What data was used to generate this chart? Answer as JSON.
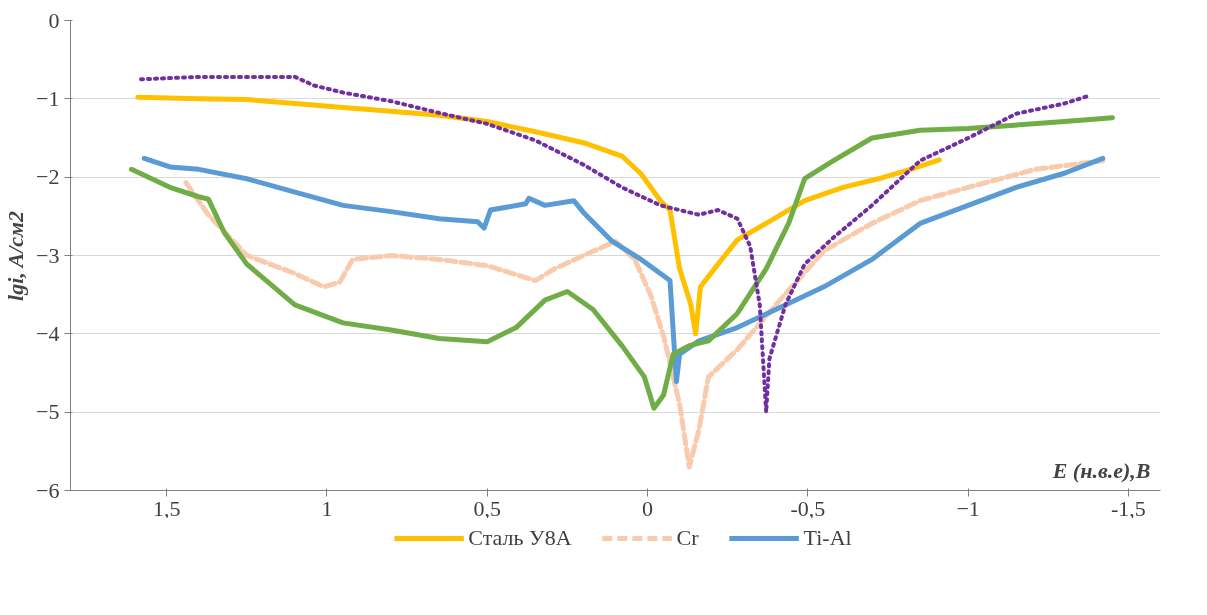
{
  "chart_data": {
    "type": "line",
    "xlabel": "E (н.в.е),B",
    "ylabel": "lgi, A/см2",
    "xlim": [
      1.8,
      -1.6
    ],
    "ylim": [
      -6,
      0
    ],
    "xticks": [
      {
        "value": 1.5,
        "label": "1,5"
      },
      1,
      {
        "value": 0.5,
        "label": "0,5"
      },
      0,
      {
        "value": -0.5,
        "label": "-0,5"
      },
      -1,
      {
        "value": -1.5,
        "label": "-1,5"
      }
    ],
    "yticks": [
      0,
      -1,
      -2,
      -3,
      -4,
      -5,
      -6
    ],
    "grid": "y",
    "legend": "bottom",
    "marker": "none",
    "series": [
      {
        "name": "Сталь У8А",
        "color": "#ffc000",
        "line_style": "solid",
        "x": [
          1.59,
          1.4,
          1.25,
          1.1,
          0.95,
          0.8,
          0.65,
          0.5,
          0.35,
          0.2,
          0.08,
          0.02,
          -0.04,
          -0.07,
          -0.1,
          -0.135,
          -0.15,
          -0.165,
          -0.22,
          -0.28,
          -0.37,
          -0.49,
          -0.61,
          -0.73,
          -0.82,
          -0.91
        ],
        "values": [
          -0.98,
          -1.0,
          -1.01,
          -1.06,
          -1.11,
          -1.16,
          -1.21,
          -1.29,
          -1.42,
          -1.56,
          -1.73,
          -1.96,
          -2.3,
          -2.42,
          -3.17,
          -3.63,
          -4.0,
          -3.4,
          -3.11,
          -2.8,
          -2.59,
          -2.3,
          -2.13,
          -2.01,
          -1.9,
          -1.78
        ]
      },
      {
        "name": "Cr",
        "color": "#f8cbad",
        "line_style": "dashed",
        "x": [
          1.44,
          1.37,
          1.25,
          1.1,
          1.01,
          0.96,
          0.92,
          0.8,
          0.65,
          0.5,
          0.35,
          0.29,
          0.2,
          0.1,
          0.04,
          -0.01,
          -0.05,
          -0.1,
          -0.13,
          -0.16,
          -0.19,
          -0.28,
          -0.4,
          -0.55,
          -0.7,
          -0.85,
          -1.0,
          -1.21,
          -1.42
        ],
        "values": [
          -2.07,
          -2.48,
          -3.0,
          -3.23,
          -3.4,
          -3.34,
          -3.05,
          -3.0,
          -3.05,
          -3.13,
          -3.32,
          -3.17,
          -3.0,
          -2.82,
          -3.05,
          -3.51,
          -4.03,
          -4.9,
          -5.7,
          -5.23,
          -4.55,
          -4.2,
          -3.63,
          -2.94,
          -2.59,
          -2.3,
          -2.13,
          -1.9,
          -1.79
        ]
      },
      {
        "name": "Ti-Al",
        "color": "#5b9bd5",
        "line_style": "solid",
        "x": [
          1.57,
          1.49,
          1.4,
          1.25,
          1.1,
          0.95,
          0.8,
          0.65,
          0.53,
          0.51,
          0.49,
          0.38,
          0.37,
          0.32,
          0.23,
          0.2,
          0.11,
          0.02,
          -0.07,
          -0.09,
          -0.1,
          -0.16,
          -0.28,
          -0.4,
          -0.55,
          -0.7,
          -0.85,
          -1.0,
          -1.15,
          -1.3,
          -1.42
        ],
        "values": [
          -1.76,
          -1.87,
          -1.9,
          -2.02,
          -2.19,
          -2.36,
          -2.44,
          -2.53,
          -2.57,
          -2.65,
          -2.42,
          -2.34,
          -2.27,
          -2.36,
          -2.3,
          -2.45,
          -2.82,
          -3.05,
          -3.32,
          -4.61,
          -4.26,
          -4.09,
          -3.92,
          -3.69,
          -3.4,
          -3.05,
          -2.59,
          -2.36,
          -2.13,
          -1.95,
          -1.76
        ]
      },
      {
        "color": "#70ad47",
        "line_style": "solid",
        "x": [
          1.61,
          1.49,
          1.4,
          1.37,
          1.32,
          1.25,
          1.1,
          0.95,
          0.8,
          0.65,
          0.5,
          0.41,
          0.32,
          0.25,
          0.17,
          0.08,
          0.01,
          -0.02,
          -0.05,
          -0.08,
          -0.13,
          -0.19,
          -0.28,
          -0.37,
          -0.44,
          -0.49,
          -0.58,
          -0.7,
          -0.85,
          -1.0,
          -1.3,
          -1.45
        ],
        "values": [
          -1.9,
          -2.13,
          -2.25,
          -2.28,
          -2.71,
          -3.11,
          -3.63,
          -3.86,
          -3.95,
          -4.06,
          -4.1,
          -3.92,
          -3.57,
          -3.46,
          -3.69,
          -4.15,
          -4.55,
          -4.95,
          -4.78,
          -4.26,
          -4.15,
          -4.09,
          -3.74,
          -3.17,
          -2.59,
          -2.02,
          -1.79,
          -1.5,
          -1.4,
          -1.38,
          -1.29,
          -1.24
        ]
      },
      {
        "color": "#7030a0",
        "line_style": "dotted",
        "x": [
          1.58,
          1.4,
          1.1,
          1.04,
          0.95,
          0.8,
          0.65,
          0.5,
          0.35,
          0.2,
          0.08,
          -0.04,
          -0.16,
          -0.22,
          -0.28,
          -0.32,
          -0.35,
          -0.37,
          -0.38,
          -0.43,
          -0.49,
          -0.58,
          -0.7,
          -0.85,
          -1.0,
          -1.15,
          -1.3,
          -1.37
        ],
        "values": [
          -0.75,
          -0.72,
          -0.72,
          -0.83,
          -0.92,
          -1.03,
          -1.18,
          -1.32,
          -1.53,
          -1.84,
          -2.13,
          -2.36,
          -2.48,
          -2.42,
          -2.53,
          -2.88,
          -3.63,
          -5.0,
          -4.32,
          -3.63,
          -3.11,
          -2.77,
          -2.36,
          -1.79,
          -1.5,
          -1.19,
          -1.06,
          -0.97
        ]
      }
    ]
  }
}
